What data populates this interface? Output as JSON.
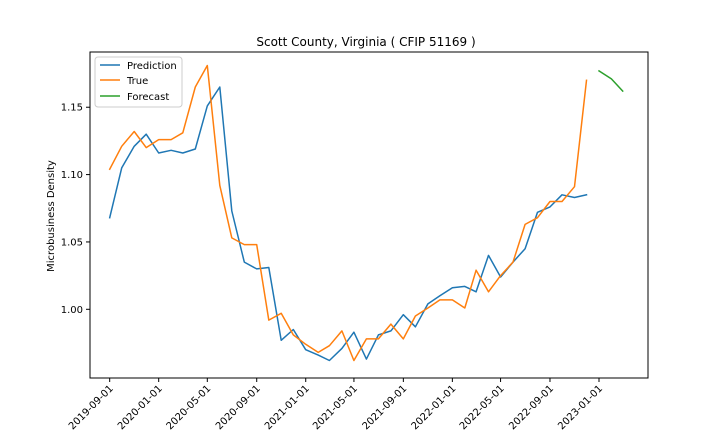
{
  "chart_data": {
    "type": "line",
    "title": "Scott County, Virginia ( CFIP 51169 )",
    "xlabel": "",
    "ylabel": "Microbusiness Density",
    "ylim": [
      0.949,
      1.191
    ],
    "xlim": [
      "2019-07-14",
      "2023-05-03"
    ],
    "x_ticks": [
      "2019-09-01",
      "2020-01-01",
      "2020-05-01",
      "2020-09-01",
      "2021-01-01",
      "2021-05-01",
      "2021-09-01",
      "2022-01-01",
      "2022-05-01",
      "2022-09-01",
      "2023-01-01"
    ],
    "y_ticks": [
      1.0,
      1.05,
      1.1,
      1.15
    ],
    "y_tick_labels": [
      "1.00",
      "1.05",
      "1.10",
      "1.15"
    ],
    "legend_position": "top-left",
    "grid": false,
    "series": [
      {
        "name": "Prediction",
        "color": "#1f77b4",
        "x": [
          "2019-09-01",
          "2019-10-01",
          "2019-11-01",
          "2019-12-01",
          "2020-01-01",
          "2020-02-01",
          "2020-03-01",
          "2020-04-01",
          "2020-05-01",
          "2020-06-01",
          "2020-07-01",
          "2020-08-01",
          "2020-09-01",
          "2020-10-01",
          "2020-11-01",
          "2020-12-01",
          "2021-01-01",
          "2021-02-01",
          "2021-03-01",
          "2021-04-01",
          "2021-05-01",
          "2021-06-01",
          "2021-07-01",
          "2021-08-01",
          "2021-09-01",
          "2021-10-01",
          "2021-11-01",
          "2021-12-01",
          "2022-01-01",
          "2022-02-01",
          "2022-03-01",
          "2022-04-01",
          "2022-05-01",
          "2022-06-01",
          "2022-07-01",
          "2022-08-01",
          "2022-09-01",
          "2022-10-01",
          "2022-11-01",
          "2022-12-01"
        ],
        "values": [
          1.068,
          1.105,
          1.121,
          1.13,
          1.116,
          1.118,
          1.116,
          1.119,
          1.151,
          1.165,
          1.073,
          1.035,
          1.03,
          1.031,
          0.977,
          0.985,
          0.97,
          0.966,
          0.962,
          0.971,
          0.983,
          0.963,
          0.981,
          0.984,
          0.996,
          0.987,
          1.004,
          1.01,
          1.016,
          1.017,
          1.013,
          1.04,
          1.024,
          1.035,
          1.045,
          1.072,
          1.076,
          1.085,
          1.083,
          1.085
        ]
      },
      {
        "name": "True",
        "color": "#ff7f0e",
        "x": [
          "2019-09-01",
          "2019-10-01",
          "2019-11-01",
          "2019-12-01",
          "2020-01-01",
          "2020-02-01",
          "2020-03-01",
          "2020-04-01",
          "2020-05-01",
          "2020-06-01",
          "2020-07-01",
          "2020-08-01",
          "2020-09-01",
          "2020-10-01",
          "2020-11-01",
          "2020-12-01",
          "2021-01-01",
          "2021-02-01",
          "2021-03-01",
          "2021-04-01",
          "2021-05-01",
          "2021-06-01",
          "2021-07-01",
          "2021-08-01",
          "2021-09-01",
          "2021-10-01",
          "2021-11-01",
          "2021-12-01",
          "2022-01-01",
          "2022-02-01",
          "2022-03-01",
          "2022-04-01",
          "2022-05-01",
          "2022-06-01",
          "2022-07-01",
          "2022-08-01",
          "2022-09-01",
          "2022-10-01",
          "2022-11-01",
          "2022-12-01"
        ],
        "values": [
          1.104,
          1.121,
          1.132,
          1.12,
          1.126,
          1.126,
          1.131,
          1.165,
          1.181,
          1.092,
          1.053,
          1.048,
          1.048,
          0.992,
          0.997,
          0.981,
          0.974,
          0.968,
          0.973,
          0.984,
          0.962,
          0.978,
          0.978,
          0.989,
          0.978,
          0.995,
          1.001,
          1.007,
          1.007,
          1.001,
          1.029,
          1.013,
          1.025,
          1.035,
          1.063,
          1.068,
          1.08,
          1.08,
          1.091,
          1.17
        ]
      },
      {
        "name": "Forecast",
        "color": "#2ca02c",
        "x": [
          "2023-01-01",
          "2023-02-01",
          "2023-03-01"
        ],
        "values": [
          1.177,
          1.171,
          1.162
        ]
      }
    ]
  }
}
